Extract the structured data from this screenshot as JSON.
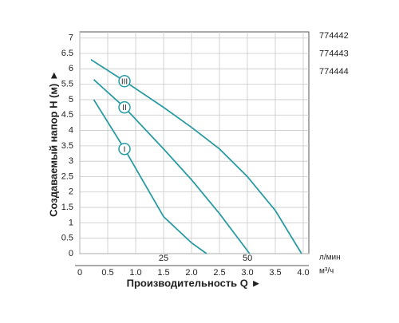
{
  "chart_data": {
    "type": "line",
    "y_label": "Создаваемый напор H (м) ►",
    "x_label": "Производительность Q ►",
    "x_unit": "м³/ч",
    "x2_unit": "л/мин",
    "legend_labels": [
      "774442",
      "774443",
      "774444"
    ],
    "xlim": [
      0,
      4.1
    ],
    "ylim": [
      0,
      7.2
    ],
    "xticks": [
      0,
      0.5,
      {
        "value": 1,
        "label": "1.0"
      },
      1.5,
      {
        "value": 2,
        "label": "2.0"
      },
      2.5,
      {
        "value": 3,
        "label": "3.0"
      },
      3.5,
      {
        "value": 4,
        "label": "4.0"
      }
    ],
    "x2lim": [
      0,
      68.3
    ],
    "x2ticks": [
      25,
      50
    ],
    "yticks": [
      0,
      0.5,
      1,
      1.5,
      2,
      2.5,
      3,
      3.5,
      4,
      4.5,
      5,
      5.5,
      6,
      6.5,
      7
    ],
    "grid": true,
    "series": [
      {
        "name": "I",
        "color": "#2a9ba3",
        "x": [
          0.25,
          0.8,
          1.5,
          2.0,
          2.27
        ],
        "values": [
          5.0,
          3.4,
          1.2,
          0.35,
          0
        ]
      },
      {
        "name": "II",
        "color": "#2a9ba3",
        "x": [
          0.25,
          0.8,
          1.5,
          2.0,
          2.5,
          3.04
        ],
        "values": [
          5.65,
          4.75,
          3.4,
          2.4,
          1.3,
          0
        ]
      },
      {
        "name": "III",
        "color": "#2a9ba3",
        "x": [
          0.2,
          0.8,
          1.5,
          2.0,
          2.5,
          3.0,
          3.5,
          3.97
        ],
        "values": [
          6.3,
          5.6,
          4.75,
          4.1,
          3.4,
          2.5,
          1.4,
          0
        ]
      }
    ]
  }
}
